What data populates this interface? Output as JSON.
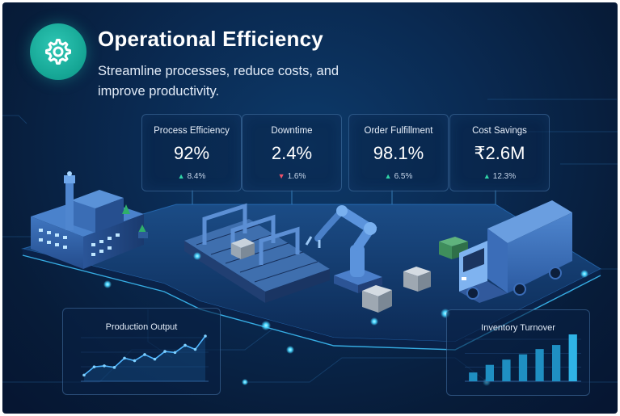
{
  "header": {
    "title": "Operational Efficiency",
    "subtitle": "Streamline processes, reduce costs, and improve productivity.",
    "badge_icon": "gear-icon"
  },
  "kpis": [
    {
      "label": "Process Efficiency",
      "value": "92%",
      "delta": "8.4%",
      "direction": "up"
    },
    {
      "label": "Downtime",
      "value": "2.4%",
      "delta": "1.6%",
      "direction": "down"
    },
    {
      "label": "Order Fulfillment",
      "value": "98.1%",
      "delta": "6.5%",
      "direction": "up"
    },
    {
      "label": "Cost Savings",
      "value": "₹2.6M",
      "delta": "12.3%",
      "direction": "up"
    }
  ],
  "production_output": {
    "title": "Production Output",
    "values": [
      12,
      28,
      30,
      27,
      45,
      40,
      52,
      43,
      58,
      56,
      70,
      62,
      88
    ]
  },
  "inventory_turnover": {
    "title": "Inventory Turnover",
    "values": [
      15,
      28,
      37,
      46,
      55,
      62,
      80
    ]
  },
  "colors": {
    "accent_teal": "#14a493",
    "up": "#2fd3a6",
    "down": "#f0536a",
    "glow": "#49d6ff"
  }
}
